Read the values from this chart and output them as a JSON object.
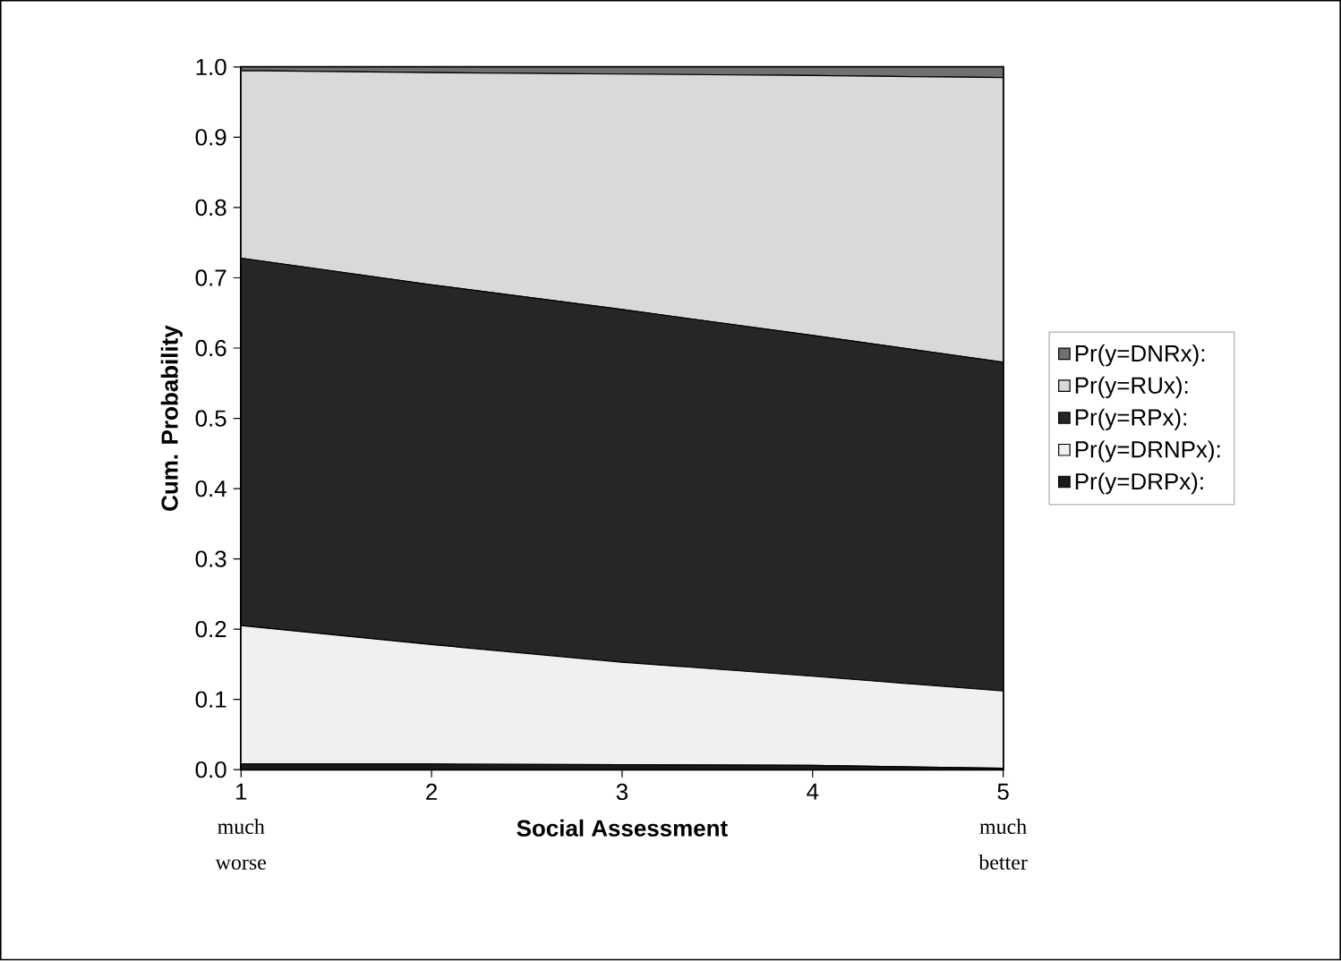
{
  "chart_data": {
    "type": "area",
    "stacked": true,
    "xlabel": "Social Assessment",
    "ylabel": "Cum. Probability",
    "x": [
      1,
      2,
      3,
      4,
      5
    ],
    "xlim": [
      1,
      5
    ],
    "xticks": [
      1,
      2,
      3,
      4,
      5
    ],
    "ylim": [
      0,
      1
    ],
    "yticks": [
      {
        "value": 0,
        "label": "0.0"
      },
      0.1,
      0.2,
      0.3,
      0.4,
      0.5,
      0.6,
      0.7,
      0.8,
      0.9,
      {
        "value": 1,
        "label": "1.0"
      }
    ],
    "series": [
      {
        "name": "Pr(y=DRPx):",
        "color": "#1a1a1a",
        "values": [
          0.008,
          0.008,
          0.007,
          0.006,
          0.002
        ]
      },
      {
        "name": "Pr(y=DRNPx):",
        "color": "#f0f0f0",
        "values": [
          0.197,
          0.17,
          0.146,
          0.127,
          0.11
        ]
      },
      {
        "name": "Pr(y=RPx):",
        "color": "#262626",
        "values": [
          0.523,
          0.512,
          0.502,
          0.485,
          0.468
        ]
      },
      {
        "name": "Pr(y=RUx):",
        "color": "#d9d9d9",
        "values": [
          0.267,
          0.302,
          0.335,
          0.37,
          0.405
        ]
      },
      {
        "name": "Pr(y=DNRx):",
        "color": "#707070",
        "values": [
          0.005,
          0.008,
          0.01,
          0.012,
          0.015
        ]
      }
    ],
    "legend": "right",
    "annotations": [
      "much worse",
      "much better"
    ]
  }
}
